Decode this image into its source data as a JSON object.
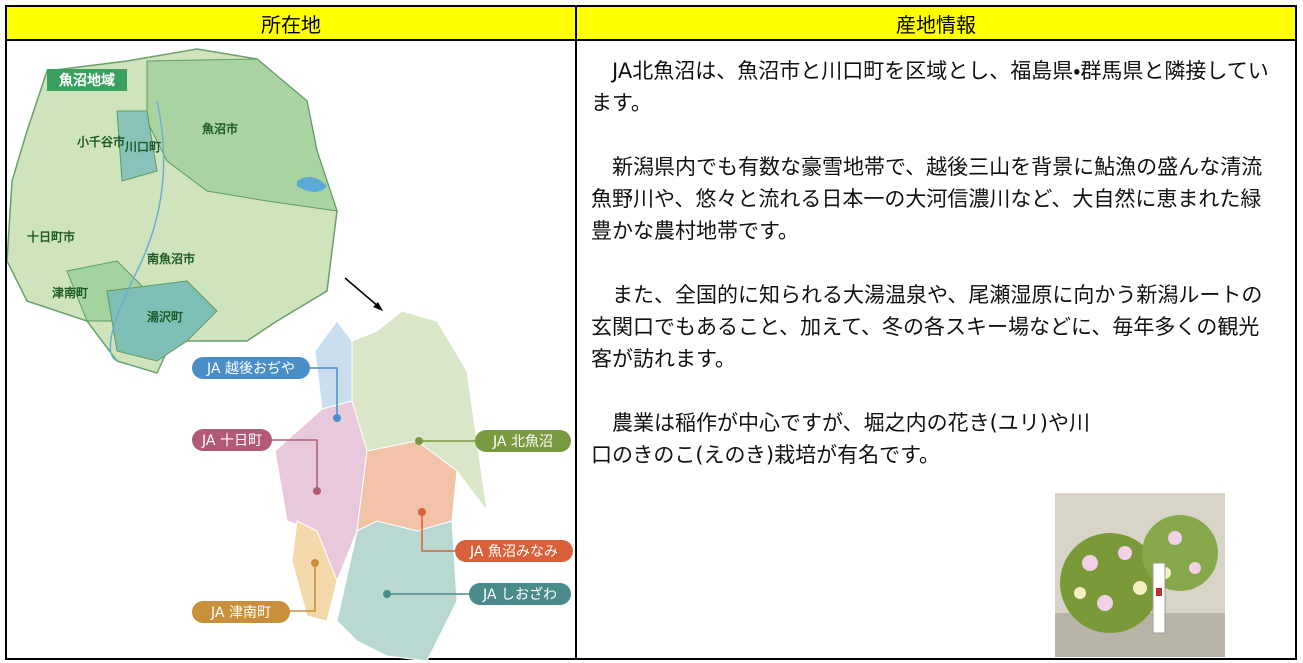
{
  "header": {
    "location": "所在地",
    "info": "産地情報"
  },
  "map": {
    "title": "魚沼地域",
    "areas": [
      "魚沼市",
      "川口町",
      "小千谷市",
      "十日町市",
      "南魚沼市",
      "津南町",
      "湯沢町"
    ]
  },
  "ja_map": {
    "labels": [
      "JA 越後おぢや",
      "JA 北魚沼",
      "JA 十日町",
      "JA 魚沼みなみ",
      "JA 津南町",
      "JA しおざわ"
    ]
  },
  "paragraphs": [
    "JA北魚沼は、魚沼市と川口町を区域とし、福島県・群馬県と隣接しています。",
    "新潟県内でも有数な豪雪地帯で、越後三山を背景に鮎漁の盛んな清流魚野川や、悠々と流れる日本一の大河信濃川など、大自然に恵まれた緑豊かな農村地帯です。",
    "また、全国的に知られる大湯温泉や、尾瀬湿原に向かう新潟ルートの玄関口でもあること、加えて、冬の各スキー場などに、毎年多くの観光客が訪れます。",
    "農業は稲作が中心ですが、堀之内の花き(ユリ)や川口のきのこ(えのき)栽培が有名です。"
  ]
}
